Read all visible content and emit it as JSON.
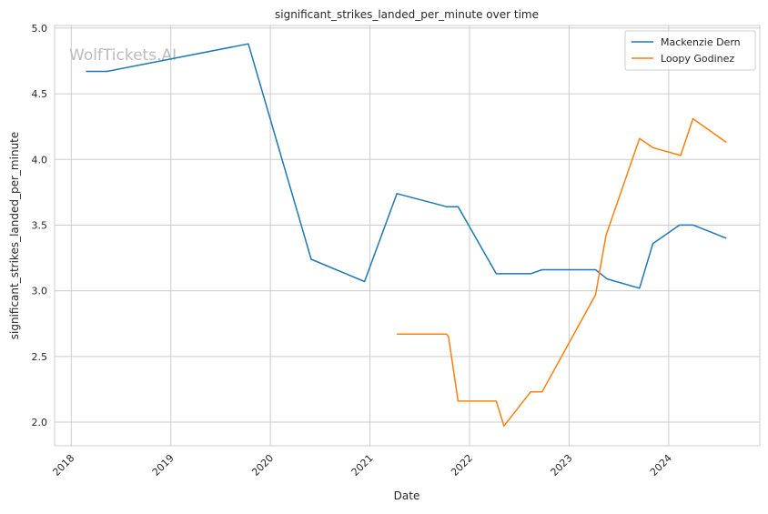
{
  "chart_data": {
    "type": "line",
    "title": "significant_strikes_landed_per_minute over time",
    "xlabel": "Date",
    "ylabel": "significant_strikes_landed_per_minute",
    "watermark": "WolfTickets.AI",
    "xticks": [
      "2018",
      "2019",
      "2020",
      "2021",
      "2022",
      "2023",
      "2024"
    ],
    "yticks": [
      "2.0",
      "2.5",
      "3.0",
      "3.5",
      "4.0",
      "4.5",
      "5.0"
    ],
    "ylim": [
      1.82,
      5.02
    ],
    "xlim": [
      "2017-11-01",
      "2024-12-01"
    ],
    "grid": true,
    "legend_position": "top-right",
    "series": [
      {
        "name": "Mackenzie Dern",
        "color": "#1f77b4",
        "x": [
          "2018-02-24",
          "2018-05-12",
          "2019-10-12",
          "2020-05-30",
          "2020-12-12",
          "2021-04-10",
          "2021-10-09",
          "2021-11-20",
          "2022-04-09",
          "2022-08-13",
          "2022-09-24",
          "2023-04-08",
          "2023-05-20",
          "2023-09-16",
          "2023-11-04",
          "2024-02-10",
          "2024-04-01",
          "2024-07-31"
        ],
        "y": [
          4.67,
          4.67,
          4.88,
          3.24,
          3.07,
          3.74,
          3.64,
          3.64,
          3.13,
          3.13,
          3.16,
          3.16,
          3.09,
          3.02,
          3.36,
          3.5,
          3.5,
          3.4
        ]
      },
      {
        "name": "Loopy Godinez",
        "color": "#ff7f0e",
        "x": [
          "2021-04-10",
          "2021-10-09",
          "2021-10-16",
          "2021-11-20",
          "2022-04-09",
          "2022-05-07",
          "2022-08-13",
          "2022-09-24",
          "2023-04-08",
          "2023-05-16",
          "2023-09-16",
          "2023-11-04",
          "2024-02-14",
          "2024-03-30",
          "2024-07-31"
        ],
        "y": [
          2.67,
          2.67,
          2.65,
          2.16,
          2.16,
          1.97,
          2.23,
          2.23,
          2.97,
          3.42,
          4.16,
          4.09,
          4.03,
          4.31,
          4.13
        ]
      }
    ]
  }
}
